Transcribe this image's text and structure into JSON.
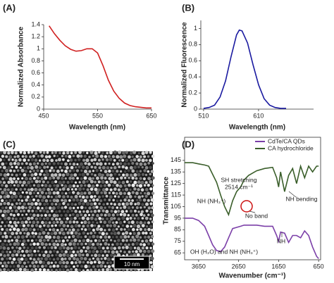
{
  "chart_data": [
    {
      "type": "line",
      "panel_label": "(A)",
      "x_label": "Wavelength (nm)",
      "y_label": "Normalized Absorbance",
      "x": [
        460,
        470,
        480,
        490,
        500,
        510,
        520,
        530,
        540,
        550,
        560,
        570,
        580,
        590,
        600,
        610,
        620,
        630,
        640,
        650
      ],
      "values": [
        1.38,
        1.25,
        1.14,
        1.05,
        0.99,
        0.96,
        0.97,
        1.0,
        1.0,
        0.93,
        0.72,
        0.48,
        0.3,
        0.18,
        0.1,
        0.06,
        0.04,
        0.03,
        0.02,
        0.02
      ],
      "color": "#d02020",
      "xlim": [
        450,
        650
      ],
      "xticks": [
        450,
        550,
        650
      ],
      "ylim": [
        0,
        1.4
      ],
      "yticks": [
        0,
        0.2,
        0.4,
        0.6,
        0.8,
        1,
        1.2,
        1.4
      ]
    },
    {
      "type": "line",
      "panel_label": "(B)",
      "x_label": "Wavelength (nm)",
      "y_label": "Normalized Fluorescence",
      "x": [
        510,
        520,
        530,
        540,
        550,
        560,
        570,
        575,
        580,
        590,
        600,
        610,
        620,
        630,
        640,
        650,
        660
      ],
      "values": [
        0.01,
        0.02,
        0.05,
        0.15,
        0.35,
        0.65,
        0.92,
        0.98,
        0.97,
        0.82,
        0.55,
        0.3,
        0.13,
        0.05,
        0.02,
        0.01,
        0.01
      ],
      "color": "#1a1aa0",
      "xlim": [
        505,
        710
      ],
      "xticks": [
        510,
        610
      ],
      "ylim": [
        0,
        1.1
      ],
      "yticks": [
        0,
        0.2,
        0.4,
        0.6,
        0.8,
        1
      ]
    },
    {
      "type": "line",
      "panel_label": "(D)",
      "x_label": "Wavenumber (cm⁻¹)",
      "y_label": "Transmittance",
      "x": [
        4000,
        3800,
        3650,
        3500,
        3400,
        3300,
        3200,
        3100,
        3000,
        2900,
        2800,
        2700,
        2600,
        2514,
        2400,
        2200,
        2000,
        1800,
        1700,
        1650,
        1600,
        1500,
        1400,
        1300,
        1200,
        1100,
        1000,
        900,
        800,
        700,
        650
      ],
      "series": [
        {
          "name": "CdTe/CA QDs",
          "color": "#7b3fa8",
          "values": [
            95,
            95,
            93,
            88,
            80,
            72,
            67,
            66,
            70,
            78,
            86,
            87,
            88,
            89,
            89,
            89,
            88,
            88,
            80,
            75,
            83,
            82,
            74,
            80,
            80,
            78,
            84,
            80,
            70,
            62,
            60
          ]
        },
        {
          "name": "CA hydrochloride",
          "color": "#3a5e2a",
          "values": [
            143,
            143,
            142,
            141,
            140,
            133,
            126,
            115,
            105,
            98,
            110,
            118,
            122,
            128,
            132,
            136,
            138,
            139,
            130,
            122,
            135,
            118,
            132,
            138,
            125,
            140,
            130,
            140,
            135,
            140,
            140
          ]
        }
      ],
      "annotations": [
        "SH stretching",
        "2514 cm⁻¹",
        "NH (NH₃⁺)",
        "NH bending",
        "No band",
        "NH",
        "OH (H₂O) and NH (NH₃⁺)"
      ],
      "xlim": [
        4000,
        600
      ],
      "xticks": [
        3650,
        2650,
        1650,
        650
      ],
      "ylim": [
        59,
        165
      ],
      "yticks": [
        65,
        75,
        85,
        95,
        105,
        115,
        125,
        135,
        145
      ]
    }
  ],
  "image_panel": {
    "panel_label": "(C)",
    "scale_bar": "10 nm"
  }
}
